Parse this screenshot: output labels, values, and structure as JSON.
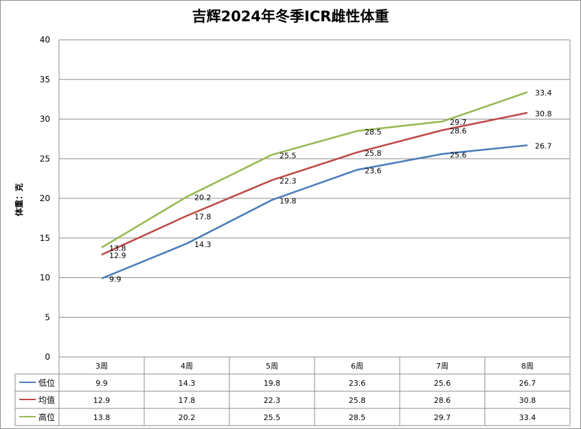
{
  "chart_data": {
    "type": "line",
    "title": "吉辉2024年冬季ICR雌性体重",
    "ylabel": "体重：克",
    "xlabel": "",
    "categories": [
      "3周",
      "4周",
      "5周",
      "6周",
      "7周",
      "8周"
    ],
    "ylim": [
      0,
      40
    ],
    "yticks": [
      0,
      5,
      10,
      15,
      20,
      25,
      30,
      35,
      40
    ],
    "grid": true,
    "legend_placement": "data-table",
    "series": [
      {
        "name": "低位",
        "color": "#4a7ebb",
        "values": [
          9.9,
          14.3,
          19.8,
          23.6,
          25.6,
          26.7
        ]
      },
      {
        "name": "均值",
        "color": "#be4b48",
        "values": [
          12.9,
          17.8,
          22.3,
          25.8,
          28.6,
          30.8
        ]
      },
      {
        "name": "高位",
        "color": "#98b954",
        "values": [
          13.8,
          20.2,
          25.5,
          28.5,
          29.7,
          33.4
        ]
      }
    ]
  }
}
